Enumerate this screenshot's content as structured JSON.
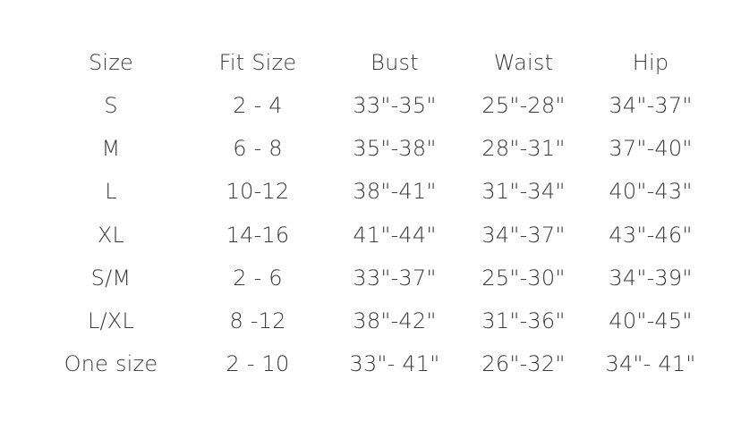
{
  "headers": [
    "Size",
    "Fit Size",
    "Bust",
    "Waist",
    "Hip"
  ],
  "rows": [
    [
      "S",
      "2 - 4",
      "33\"-35\"",
      "25\"-28\"",
      "34\"-37\""
    ],
    [
      "M",
      "6 - 8",
      "35\"-38\"",
      "28\"-31\"",
      "37\"-40\""
    ],
    [
      "L",
      "10-12",
      "38\"-41\"",
      "31\"-34\"",
      "40\"-43\""
    ],
    [
      "XL",
      "14-16",
      "41\"-44\"",
      "34\"-37\"",
      "43\"-46\""
    ],
    [
      "S/M",
      "2 - 6",
      "33\"-37\"",
      "25\"-30\"",
      "34\"-39\""
    ],
    [
      "L/XL",
      "8 -12",
      "38\"-42\"",
      "31\"-36\"",
      "40\"-45\""
    ],
    [
      "One size",
      "2 - 10",
      "33\"- 41\"",
      "26\"-32\"",
      "34\"- 41\""
    ]
  ]
}
